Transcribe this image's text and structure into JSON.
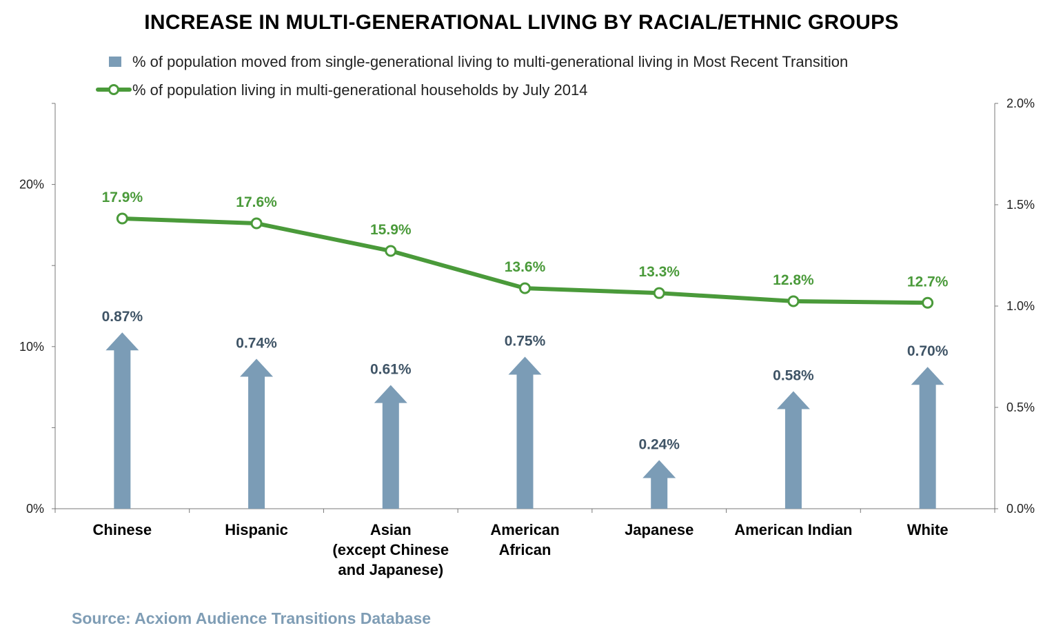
{
  "chart_data": {
    "type": "bar",
    "title": "INCREASE IN MULTI-GENERATIONAL LIVING BY RACIAL/ETHNIC GROUPS",
    "categories": [
      [
        "Chinese"
      ],
      [
        "Hispanic"
      ],
      [
        "Asian",
        "(except Chinese",
        "and Japanese)"
      ],
      [
        "American",
        "African"
      ],
      [
        "Japanese"
      ],
      [
        "American Indian"
      ],
      [
        "White"
      ]
    ],
    "series": [
      {
        "name": "% of population moved from single-generational living to multi-generational living in Most Recent Transition",
        "type": "bar",
        "axis": "right",
        "values": [
          0.87,
          0.74,
          0.61,
          0.75,
          0.24,
          0.58,
          0.7
        ],
        "labels": [
          "0.87%",
          "0.74%",
          "0.61%",
          "0.75%",
          "0.24%",
          "0.58%",
          "0.70%"
        ],
        "color": "#7b9cb6"
      },
      {
        "name": "% of population living in multi-generational households by July 2014",
        "type": "line",
        "axis": "left",
        "values": [
          17.9,
          17.6,
          15.9,
          13.6,
          13.3,
          12.8,
          12.7
        ],
        "labels": [
          "17.9%",
          "17.6%",
          "15.9%",
          "13.6%",
          "13.3%",
          "12.8%",
          "12.7%"
        ],
        "color": "#4a9a3a"
      }
    ],
    "left_axis": {
      "ticks": [
        "0%",
        "10%",
        "20%"
      ],
      "tick_values": [
        0,
        10,
        20
      ],
      "ylim": [
        0,
        25
      ]
    },
    "right_axis": {
      "ticks": [
        "0.0%",
        "0.5%",
        "1.0%",
        "1.5%",
        "2.0%"
      ],
      "tick_values": [
        0,
        0.5,
        1.0,
        1.5,
        2.0
      ],
      "ylim": [
        0,
        2.0
      ]
    },
    "legend_position": "top",
    "grid": false
  },
  "source": "Source: Acxiom Audience Transitions Database"
}
